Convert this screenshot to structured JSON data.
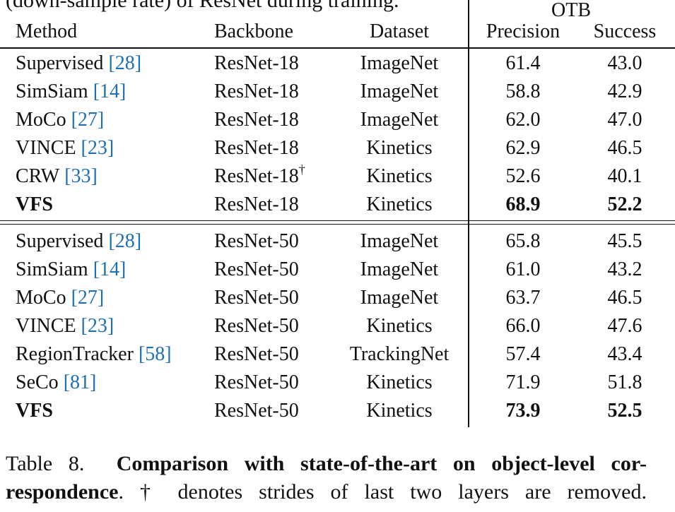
{
  "top_text": "(down-sample rate) of ResNet during training.",
  "table": {
    "group_header": "OTB",
    "columns": [
      "Method",
      "Backbone",
      "Dataset",
      "Precision",
      "Success"
    ],
    "groups": [
      [
        {
          "method": "Supervised",
          "cite": "[28]",
          "backbone": "ResNet-18",
          "dataset": "ImageNet",
          "precision": "61.4",
          "success": "43.0"
        },
        {
          "method": "SimSiam",
          "cite": "[14]",
          "backbone": "ResNet-18",
          "dataset": "ImageNet",
          "precision": "58.8",
          "success": "42.9"
        },
        {
          "method": "MoCo",
          "cite": "[27]",
          "backbone": "ResNet-18",
          "dataset": "ImageNet",
          "precision": "62.0",
          "success": "47.0"
        },
        {
          "method": "VINCE",
          "cite": "[23]",
          "backbone": "ResNet-18",
          "dataset": "Kinetics",
          "precision": "62.9",
          "success": "46.5"
        },
        {
          "method": "CRW",
          "cite": "[33]",
          "backbone": "ResNet-18",
          "backbone_mark": "†",
          "dataset": "Kinetics",
          "precision": "52.6",
          "success": "40.1"
        },
        {
          "method": "VFS",
          "backbone": "ResNet-18",
          "dataset": "Kinetics",
          "precision": "68.9",
          "success": "52.2",
          "bold": true
        }
      ],
      [
        {
          "method": "Supervised",
          "cite": "[28]",
          "backbone": "ResNet-50",
          "dataset": "ImageNet",
          "precision": "65.8",
          "success": "45.5"
        },
        {
          "method": "SimSiam",
          "cite": "[14]",
          "backbone": "ResNet-50",
          "dataset": "ImageNet",
          "precision": "61.0",
          "success": "43.2"
        },
        {
          "method": "MoCo",
          "cite": "[27]",
          "backbone": "ResNet-50",
          "dataset": "ImageNet",
          "precision": "63.7",
          "success": "46.5"
        },
        {
          "method": "VINCE",
          "cite": "[23]",
          "backbone": "ResNet-50",
          "dataset": "Kinetics",
          "precision": "66.0",
          "success": "47.6"
        },
        {
          "method": "RegionTracker",
          "cite": "[58]",
          "backbone": "ResNet-50",
          "dataset": "TrackingNet",
          "precision": "57.4",
          "success": "43.4"
        },
        {
          "method": "SeCo",
          "cite": "[81]",
          "backbone": "ResNet-50",
          "dataset": "Kinetics",
          "precision": "71.9",
          "success": "51.8"
        },
        {
          "method": "VFS",
          "backbone": "ResNet-50",
          "dataset": "Kinetics",
          "precision": "73.9",
          "success": "52.5",
          "bold": true
        }
      ]
    ]
  },
  "caption": {
    "label": "Table 8.",
    "title_lines": [
      "Comparison with state-of-the-art on object-level cor-",
      "respondence"
    ],
    "text": ". † denotes strides of last two layers are removed."
  }
}
